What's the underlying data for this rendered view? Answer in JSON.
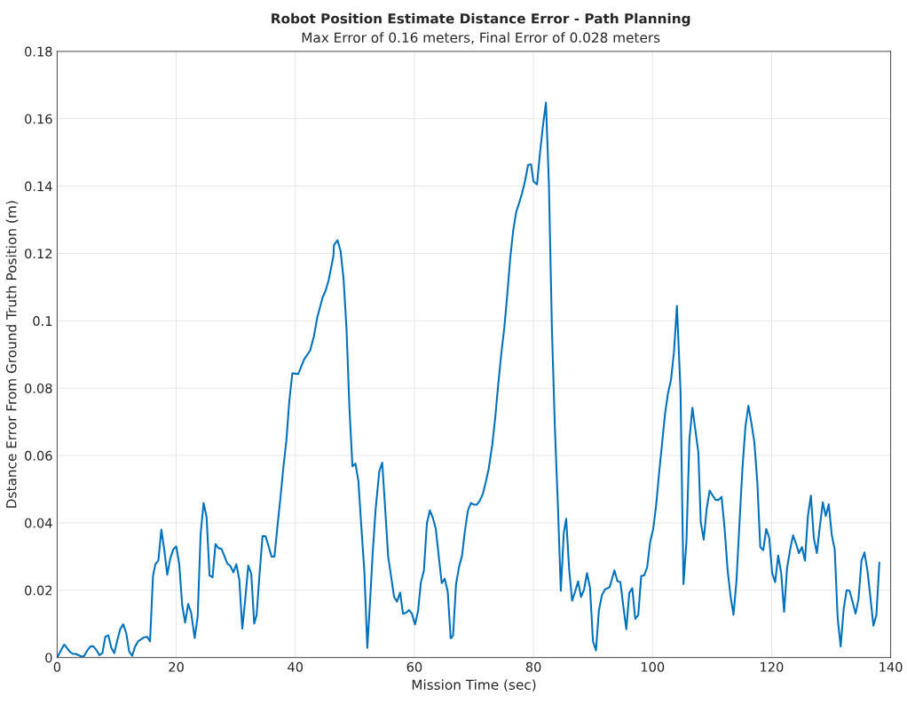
{
  "chart_data": {
    "type": "line",
    "title": "Robot Position Estimate Distance Error - Path Planning",
    "subtitle": "Max Error of 0.16 meters, Final Error of 0.028 meters",
    "xlabel": "Mission Time (sec)",
    "ylabel": "Dstance Error From Ground Truth Position (m)",
    "xlim": [
      0,
      140
    ],
    "xticks": [
      0,
      20,
      40,
      60,
      80,
      100,
      120,
      140
    ],
    "ylim": [
      0,
      0.18
    ],
    "yticks": [
      0,
      0.02,
      0.04,
      0.06,
      0.08,
      0.1,
      0.12,
      0.14,
      0.16,
      0.18
    ],
    "grid": true,
    "legend": false,
    "marker": "none",
    "line_style": "solid",
    "series": [
      {
        "color": "#0072bd",
        "x": [
          0,
          1.15,
          1.24,
          2.1,
          2.6,
          3.1,
          4.1,
          4.5,
          5.1,
          5.6,
          6.1,
          6.6,
          7.1,
          7.6,
          8.1,
          8.6,
          9.1,
          9.6,
          10.1,
          10.6,
          11.1,
          11.6,
          12.1,
          12.6,
          13.1,
          13.6,
          14.6,
          15.1,
          15.6,
          16.1,
          16.5,
          17.0,
          17.5,
          18.0,
          18.5,
          19.0,
          19.5,
          20.0,
          20.5,
          21.0,
          21.5,
          22.0,
          22.5,
          23.1,
          23.6,
          24.1,
          24.6,
          25.1,
          25.6,
          26.1,
          26.6,
          27.1,
          27.6,
          28.6,
          29.1,
          29.6,
          30.1,
          30.6,
          31.1,
          31.6,
          32.1,
          32.6,
          33.1,
          33.5,
          34.0,
          34.5,
          35.0,
          35.5,
          36.0,
          36.5,
          37.0,
          37.5,
          38.0,
          38.5,
          39.0,
          39.5,
          40.0,
          40.5,
          41.0,
          41.5,
          42.5,
          43.1,
          43.7,
          44.6,
          45.1,
          45.6,
          46.4,
          46.5,
          47.1,
          47.6,
          48.1,
          48.6,
          49.1,
          49.6,
          50.1,
          50.6,
          51.1,
          51.6,
          52.1,
          52.6,
          53.0,
          53.5,
          54.1,
          54.6,
          55.1,
          55.6,
          56.1,
          56.6,
          57.1,
          57.6,
          58.1,
          58.6,
          59.1,
          59.6,
          60.1,
          60.6,
          61.1,
          61.6,
          62.1,
          62.6,
          63.1,
          63.6,
          64.1,
          64.6,
          65.1,
          65.6,
          66.1,
          66.5,
          67.0,
          67.5,
          68.0,
          68.5,
          69.0,
          69.5,
          70.0,
          70.5,
          71.0,
          71.5,
          72.0,
          72.5,
          73.1,
          73.6,
          74.1,
          74.6,
          75.1,
          75.6,
          76.1,
          76.6,
          77.1,
          77.6,
          78.1,
          78.6,
          79.1,
          79.6,
          80.0,
          80.6,
          81.1,
          81.6,
          82.1,
          82.6,
          83.1,
          83.6,
          84.1,
          84.6,
          85.1,
          85.5,
          86.0,
          86.5,
          87.0,
          87.5,
          88.0,
          88.5,
          89.0,
          89.5,
          90.0,
          90.5,
          91.0,
          91.5,
          92.0,
          92.8,
          93.6,
          94.1,
          94.6,
          95.1,
          95.6,
          96.1,
          96.6,
          97.1,
          97.6,
          98.1,
          98.6,
          99.1,
          99.6,
          100.1,
          100.6,
          101.1,
          101.6,
          102.1,
          102.6,
          103.1,
          103.6,
          104.1,
          104.7,
          105.2,
          105.7,
          106.2,
          106.7,
          107.2,
          107.7,
          108.1,
          108.6,
          109.1,
          109.6,
          110.1,
          110.6,
          111.1,
          111.6,
          112.1,
          112.6,
          113.1,
          113.6,
          114.1,
          114.6,
          115.1,
          115.6,
          116.1,
          116.6,
          117.1,
          117.6,
          118.1,
          118.6,
          119.1,
          119.6,
          120.1,
          120.6,
          121.1,
          121.6,
          122.1,
          122.6,
          123.1,
          123.6,
          124.1,
          124.6,
          125.1,
          125.6,
          126.1,
          126.6,
          127.1,
          127.6,
          128.1,
          128.6,
          129.1,
          129.6,
          130.1,
          130.6,
          131.1,
          131.6,
          132.1,
          132.6,
          133.1,
          133.6,
          134.1,
          134.6,
          135.1,
          135.6,
          136.1,
          136.6,
          137.1,
          137.6,
          138.1
        ],
        "values": [
          0,
          0.0038,
          0.0038,
          0.0018,
          0.0011,
          0.0011,
          0.0003,
          0.0004,
          0.0022,
          0.0033,
          0.0033,
          0.0022,
          0.0007,
          0.0013,
          0.0062,
          0.0066,
          0.0029,
          0.0013,
          0.0051,
          0.0084,
          0.0099,
          0.0073,
          0.0018,
          0.0005,
          0.0033,
          0.0048,
          0.006,
          0.0062,
          0.0048,
          0.0242,
          0.0277,
          0.0288,
          0.038,
          0.0319,
          0.0246,
          0.0294,
          0.0321,
          0.033,
          0.0279,
          0.0156,
          0.0104,
          0.0159,
          0.0134,
          0.0058,
          0.0121,
          0.0367,
          0.0459,
          0.0417,
          0.0244,
          0.0238,
          0.0337,
          0.0325,
          0.0323,
          0.0279,
          0.0272,
          0.0253,
          0.0277,
          0.0231,
          0.0086,
          0.0174,
          0.0273,
          0.0249,
          0.0101,
          0.0126,
          0.0249,
          0.0361,
          0.036,
          0.0332,
          0.03,
          0.03,
          0.0389,
          0.0473,
          0.0565,
          0.0644,
          0.0763,
          0.0844,
          0.0843,
          0.0842,
          0.0864,
          0.0886,
          0.0912,
          0.0952,
          0.101,
          0.107,
          0.109,
          0.112,
          0.1192,
          0.1225,
          0.1239,
          0.1208,
          0.1126,
          0.0978,
          0.0738,
          0.0568,
          0.0576,
          0.0524,
          0.0387,
          0.0256,
          0.0029,
          0.018,
          0.0311,
          0.0442,
          0.0552,
          0.0579,
          0.0442,
          0.03,
          0.024,
          0.018,
          0.0166,
          0.0193,
          0.013,
          0.0133,
          0.0141,
          0.013,
          0.0098,
          0.0136,
          0.0224,
          0.0258,
          0.0398,
          0.0437,
          0.0415,
          0.0382,
          0.03,
          0.0221,
          0.0234,
          0.0196,
          0.0057,
          0.0065,
          0.0218,
          0.0269,
          0.0302,
          0.0377,
          0.0437,
          0.0459,
          0.0454,
          0.0454,
          0.0466,
          0.0486,
          0.0521,
          0.0562,
          0.0634,
          0.0716,
          0.0814,
          0.0902,
          0.0978,
          0.1077,
          0.1186,
          0.1268,
          0.1323,
          0.135,
          0.138,
          0.1416,
          0.1463,
          0.1465,
          0.1414,
          0.1405,
          0.1498,
          0.158,
          0.1648,
          0.1405,
          0.0978,
          0.0683,
          0.0454,
          0.0198,
          0.0371,
          0.0412,
          0.0262,
          0.0169,
          0.0196,
          0.0226,
          0.018,
          0.0202,
          0.0251,
          0.0207,
          0.0048,
          0.0021,
          0.0141,
          0.0185,
          0.0202,
          0.0209,
          0.0259,
          0.0227,
          0.0224,
          0.0152,
          0.0084,
          0.0192,
          0.0206,
          0.0115,
          0.0126,
          0.0242,
          0.0244,
          0.0268,
          0.0343,
          0.038,
          0.0451,
          0.0547,
          0.0635,
          0.0723,
          0.0785,
          0.0824,
          0.0907,
          0.1044,
          0.0793,
          0.0218,
          0.0345,
          0.0648,
          0.0742,
          0.0675,
          0.0609,
          0.0402,
          0.035,
          0.0442,
          0.0496,
          0.0481,
          0.0468,
          0.0468,
          0.0477,
          0.0385,
          0.0262,
          0.0183,
          0.0127,
          0.0227,
          0.0398,
          0.0561,
          0.0684,
          0.0748,
          0.0697,
          0.064,
          0.0521,
          0.0328,
          0.0319,
          0.0382,
          0.0356,
          0.025,
          0.0224,
          0.0303,
          0.0253,
          0.0136,
          0.0266,
          0.0319,
          0.0363,
          0.0338,
          0.031,
          0.0328,
          0.0288,
          0.042,
          0.0481,
          0.0354,
          0.031,
          0.0389,
          0.0461,
          0.042,
          0.0455,
          0.0365,
          0.0321,
          0.0117,
          0.0033,
          0.0143,
          0.02,
          0.0198,
          0.0165,
          0.013,
          0.0174,
          0.0288,
          0.0312,
          0.0258,
          0.0178,
          0.0095,
          0.0126,
          0.0282
        ]
      }
    ]
  }
}
